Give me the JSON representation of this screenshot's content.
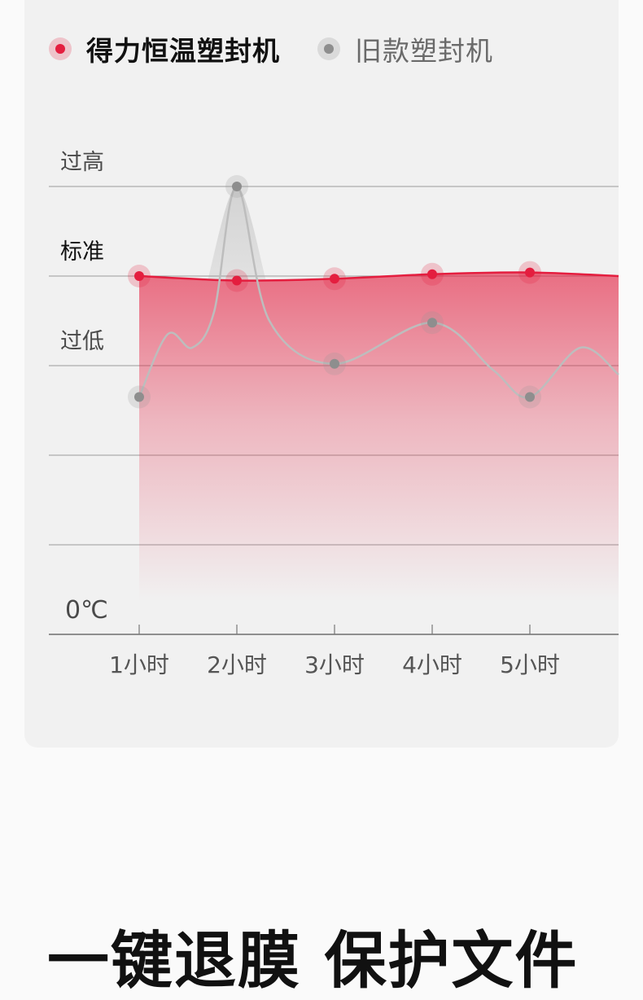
{
  "legend": {
    "series_a": "得力恒温塑封机",
    "series_b": "旧款塑封机"
  },
  "chart_data": {
    "type": "area",
    "categories": [
      "1小时",
      "2小时",
      "3小时",
      "4小时",
      "5小时"
    ],
    "y_levels": [
      "0℃",
      "",
      "",
      "过低",
      "标准",
      "过高"
    ],
    "ylim": [
      0,
      5
    ],
    "series": [
      {
        "name": "得力恒温塑封机",
        "color": "#e41e3f",
        "values": [
          4.0,
          3.95,
          3.97,
          4.02,
          4.04
        ]
      },
      {
        "name": "旧款塑封机",
        "color": "#8e8e8e",
        "values": [
          2.65,
          5.0,
          3.02,
          3.48,
          2.65
        ]
      }
    ],
    "grid": true
  },
  "headline": "一键退膜 保护文件"
}
